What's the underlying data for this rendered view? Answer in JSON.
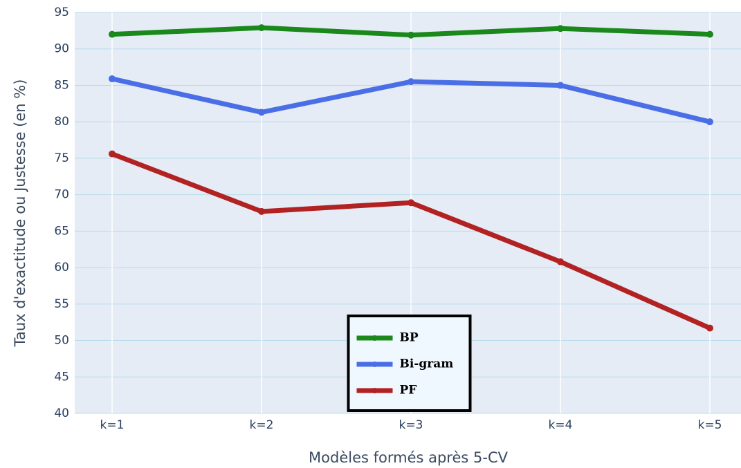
{
  "chart_data": {
    "type": "line",
    "xlabel": "Modèles formés après 5-CV",
    "ylabel": "Taux d'exactitude ou Justesse (en %)",
    "categories": [
      "k=1",
      "k=2",
      "k=3",
      "k=4",
      "k=5"
    ],
    "series": [
      {
        "name": "BP",
        "color": "#1a881a",
        "values": [
          92.0,
          92.9,
          91.9,
          92.8,
          92.0
        ]
      },
      {
        "name": "Bi-gram",
        "color": "#4a6ee6",
        "values": [
          85.9,
          81.3,
          85.5,
          85.0,
          80.0
        ]
      },
      {
        "name": "PF",
        "color": "#b22222",
        "values": [
          75.6,
          67.7,
          68.9,
          60.8,
          51.7
        ]
      }
    ],
    "ylim": [
      40,
      95
    ],
    "yticks": [
      40,
      45,
      50,
      55,
      60,
      65,
      70,
      75,
      80,
      85,
      90,
      95
    ],
    "grid": true,
    "legend_position": "lower center"
  }
}
